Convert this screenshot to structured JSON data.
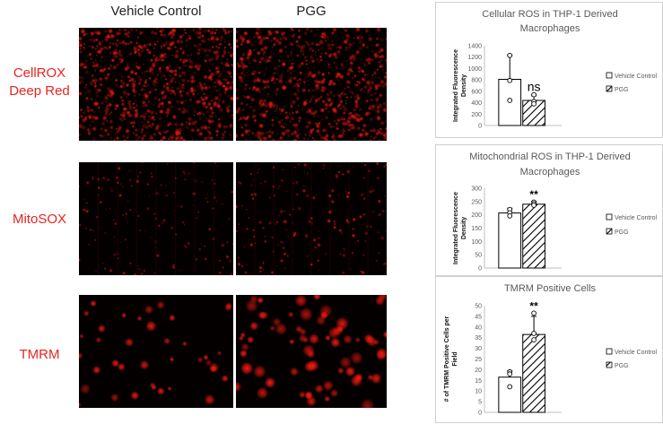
{
  "columns": {
    "vehicle": "Vehicle Control",
    "pgg": "PGG"
  },
  "rows": {
    "cellrox_line1": "CellROX",
    "cellrox_line2": "Deep Red",
    "mitosox": "MitoSOX",
    "tmrm": "TMRM"
  },
  "colors": {
    "label_red": "#e8241f",
    "stain_red": "#ff1a10",
    "background": "#050000"
  },
  "chart_data": [
    {
      "type": "bar",
      "title": "Cellular ROS in THP-1 Derived Macrophages",
      "title_lines": [
        "Cellular ROS in THP-1 Derived",
        "Macrophages"
      ],
      "ylabel": "Integrated Fluorescence Density",
      "ylabel_lines": [
        "Integrated Fluorescence",
        "Density"
      ],
      "ylim": [
        0,
        1400
      ],
      "yticks": [
        0,
        200,
        400,
        600,
        800,
        1000,
        1200,
        1400
      ],
      "ytick_labels": [
        "0",
        "200",
        "400",
        "600",
        "800",
        "1000",
        "1200",
        "1400"
      ],
      "categories": [
        "Vehicle Control",
        "PGG"
      ],
      "values": [
        810,
        440
      ],
      "error_upper": [
        1230,
        520
      ],
      "points": [
        [
          1230,
          790,
          440
        ],
        [
          540,
          420,
          380
        ]
      ],
      "annotation": "ns",
      "legend": [
        "Vehicle Control",
        "PGG"
      ],
      "legend_position": "right"
    },
    {
      "type": "bar",
      "title": "Mitochondrial ROS in THP-1 Derived Macrophages",
      "title_lines": [
        "Mitochondrial ROS in THP-1 Derived",
        "Macrophages"
      ],
      "ylabel": "Integrated Fluorescence Density",
      "ylabel_lines": [
        "Integrated Fluorescence",
        "Density"
      ],
      "ylim": [
        0,
        300
      ],
      "yticks": [
        0,
        50,
        100,
        150,
        200,
        250,
        300
      ],
      "ytick_labels": [
        "0",
        "50",
        "100",
        "150",
        "200",
        "250",
        "300"
      ],
      "categories": [
        "Vehicle Control",
        "PGG"
      ],
      "values": [
        207,
        240
      ],
      "error_upper": [
        225,
        250
      ],
      "points": [
        [
          220,
          208,
          196
        ],
        [
          248,
          242,
          236
        ]
      ],
      "annotation": "**",
      "legend": [
        "Vehicle Control",
        "PGG"
      ],
      "legend_position": "right"
    },
    {
      "type": "bar",
      "title": "TMRM Positive Cells",
      "title_lines": [
        "TMRM Positive Cells"
      ],
      "ylabel": "# of TMRM Positive Cells per Field",
      "ylabel_lines": [
        "# of TMRM Positive Cells per",
        "Field"
      ],
      "ylim": [
        0,
        50
      ],
      "yticks": [
        0,
        5,
        10,
        15,
        20,
        25,
        30,
        35,
        40,
        45,
        50
      ],
      "ytick_labels": [
        "0",
        "5",
        "10",
        "15",
        "20",
        "25",
        "30",
        "35",
        "40",
        "45",
        "50"
      ],
      "categories": [
        "Vehicle Control",
        "PGG"
      ],
      "values": [
        16.5,
        36.5
      ],
      "error_upper": [
        19.5,
        45
      ],
      "points": [
        [
          19,
          18,
          12
        ],
        [
          46.5,
          37,
          34
        ]
      ],
      "annotation": "**",
      "legend": [
        "Vehicle Control",
        "PGG"
      ],
      "legend_position": "right"
    }
  ]
}
